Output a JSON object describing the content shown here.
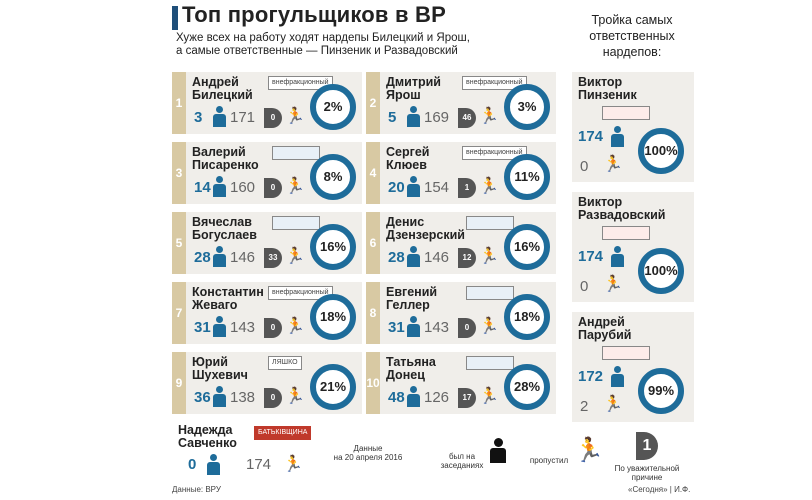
{
  "header": {
    "title": "Топ прогульщиков в ВР",
    "subtitle_line1": "Хуже всех на работу ходят нардепы Билецкий и Ярош,",
    "subtitle_line2": "а самые ответственные — Пинзеник и Развадовский"
  },
  "top3_heading": "Тройка самых ответственных нардепов:",
  "worst": [
    {
      "rank": "1",
      "name1": "Андрей",
      "name2": "Билецкий",
      "badge": "внефракционный",
      "present": "3",
      "absent": "171",
      "excused": "0",
      "percent": "2%"
    },
    {
      "rank": "2",
      "name1": "Дмитрий",
      "name2": "Ярош",
      "badge": "внефракционный",
      "present": "5",
      "absent": "169",
      "excused": "46",
      "percent": "3%"
    },
    {
      "rank": "3",
      "name1": "Валерий",
      "name2": "Писаренко",
      "badge": "",
      "present": "14",
      "absent": "160",
      "excused": "0",
      "percent": "8%"
    },
    {
      "rank": "4",
      "name1": "Сергей",
      "name2": "Клюев",
      "badge": "внефракционный",
      "present": "20",
      "absent": "154",
      "excused": "1",
      "percent": "11%"
    },
    {
      "rank": "5",
      "name1": "Вячеслав",
      "name2": "Богуслаев",
      "badge": "",
      "present": "28",
      "absent": "146",
      "excused": "33",
      "percent": "16%"
    },
    {
      "rank": "6",
      "name1": "Денис",
      "name2": "Дзензерский",
      "badge": "",
      "present": "28",
      "absent": "146",
      "excused": "12",
      "percent": "16%"
    },
    {
      "rank": "7",
      "name1": "Константин",
      "name2": "Жеваго",
      "badge": "внефракционный",
      "present": "31",
      "absent": "143",
      "excused": "0",
      "percent": "18%"
    },
    {
      "rank": "8",
      "name1": "Евгений",
      "name2": "Геллер",
      "badge": "",
      "present": "31",
      "absent": "143",
      "excused": "0",
      "percent": "18%"
    },
    {
      "rank": "9",
      "name1": "Юрий",
      "name2": "Шухевич",
      "badge": "ЛЯШКО",
      "present": "36",
      "absent": "138",
      "excused": "0",
      "percent": "21%"
    },
    {
      "rank": "10",
      "name1": "Татьяна",
      "name2": "Донец",
      "badge": "",
      "present": "48",
      "absent": "126",
      "excused": "17",
      "percent": "28%"
    }
  ],
  "savchenko": {
    "name1": "Надежда",
    "name2": "Савченко",
    "present": "0",
    "absent": "174"
  },
  "best": [
    {
      "name1": "Виктор",
      "name2": "Пинзеник",
      "present": "174",
      "absent": "0",
      "percent": "100%"
    },
    {
      "name1": "Виктор",
      "name2": "Развадовский",
      "present": "174",
      "absent": "0",
      "percent": "100%"
    },
    {
      "name1": "Андрей",
      "name2": "Парубий",
      "present": "172",
      "absent": "2",
      "percent": "99%"
    }
  ],
  "legend": {
    "date_line1": "Данные",
    "date_line2": "на 20 апреля 2016",
    "present": "был на заседаниях",
    "absent": "пропустил",
    "excused": "По уважительной причине",
    "excused_glyph": "1"
  },
  "footer": {
    "source": "Данные: ВРУ",
    "credit": "«Сегодня» | И.Ф."
  },
  "colors": {
    "accent": "#1e6c9a",
    "rank_bg": "#d8c9a3",
    "card_bg": "#f0eeea"
  }
}
